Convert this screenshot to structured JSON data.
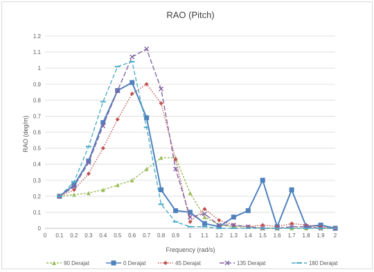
{
  "chart_data": {
    "type": "line",
    "title": "RAO (Pitch)",
    "xlabel": "Frequency (rad/s)",
    "ylabel": "RAO (deg/m)",
    "xlim": [
      0,
      2
    ],
    "ylim": [
      0,
      1.2
    ],
    "x_ticks": [
      "0",
      "0.1",
      "0.2",
      "0.3",
      "0.4",
      "0.5",
      "0.6",
      "0.7",
      "0.8",
      "0.9",
      "1",
      "1.1",
      "1.2",
      "1.3",
      "1.4",
      "1.5",
      "1.6",
      "1.7",
      "1.8",
      "1.9",
      "2"
    ],
    "y_ticks": [
      "0",
      "0.1",
      "0.2",
      "0.3",
      "0.4",
      "0.5",
      "0.6",
      "0.7",
      "0.8",
      "0.9",
      "1",
      "1.1",
      "1.2"
    ],
    "grid": true,
    "legend_position": "bottom",
    "x": [
      0.1,
      0.2,
      0.3,
      0.4,
      0.5,
      0.6,
      0.7,
      0.8,
      0.9,
      1.0,
      1.1,
      1.2,
      1.3,
      1.4,
      1.5,
      1.6,
      1.7,
      1.8,
      1.9,
      2.0
    ],
    "series": [
      {
        "name": "90 Derajat",
        "color": "#9bbb59",
        "dash": "3,2",
        "marker": "triangle",
        "values": [
          0.2,
          0.21,
          0.22,
          0.24,
          0.27,
          0.3,
          0.37,
          0.44,
          0.44,
          0.22,
          0.07,
          0.02,
          0.01,
          0.01,
          0.0,
          0.0,
          0.0,
          0.0,
          0.0,
          0.0
        ]
      },
      {
        "name": "0 Derajat",
        "color": "#4f81bd",
        "dash": "",
        "marker": "square",
        "values": [
          0.2,
          0.27,
          0.42,
          0.66,
          0.86,
          0.91,
          0.69,
          0.24,
          0.11,
          0.1,
          0.03,
          0.01,
          0.07,
          0.11,
          0.3,
          0.01,
          0.24,
          0.01,
          0.02,
          0.0
        ]
      },
      {
        "name": "45 Derajat",
        "color": "#c0504d",
        "dash": "1.5,2",
        "marker": "diamond",
        "values": [
          0.2,
          0.24,
          0.34,
          0.5,
          0.68,
          0.84,
          0.9,
          0.78,
          0.43,
          0.04,
          0.12,
          0.05,
          0.02,
          0.01,
          0.02,
          0.01,
          0.03,
          0.02,
          0.01,
          0.0
        ]
      },
      {
        "name": "135 Derajat",
        "color": "#8064a2",
        "dash": "7,3",
        "marker": "x",
        "values": [
          0.2,
          0.26,
          0.41,
          0.64,
          0.86,
          1.07,
          1.12,
          0.87,
          0.37,
          0.07,
          0.09,
          0.02,
          0.02,
          0.01,
          0.0,
          0.0,
          0.01,
          0.01,
          0.0,
          0.0
        ]
      },
      {
        "name": "180 Derajat",
        "color": "#4bacc6",
        "dash": "6,3",
        "marker": "dash",
        "values": [
          0.2,
          0.29,
          0.51,
          0.79,
          1.01,
          1.04,
          0.63,
          0.15,
          0.04,
          0.01,
          0.01,
          0.0,
          0.0,
          0.0,
          0.0,
          0.0,
          0.0,
          0.0,
          0.0,
          0.0
        ]
      }
    ]
  }
}
